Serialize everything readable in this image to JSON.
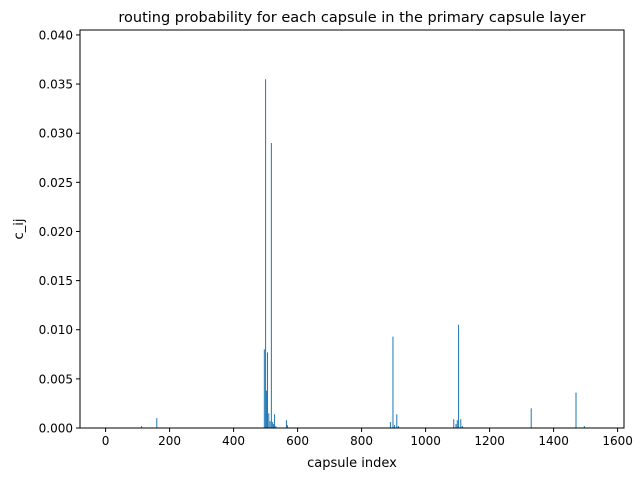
{
  "chart_data": {
    "type": "bar",
    "title": "routing probability for each capsule in the primary capsule layer",
    "xlabel": "capsule index",
    "ylabel": "c_ij",
    "xlim": [
      -80,
      1620
    ],
    "ylim": [
      0,
      0.0405
    ],
    "xticks": [
      0,
      200,
      400,
      600,
      800,
      1000,
      1200,
      1400,
      1600
    ],
    "xtick_labels": [
      "0",
      "200",
      "400",
      "600",
      "800",
      "1000",
      "1200",
      "1400",
      "1600"
    ],
    "yticks": [
      0.0,
      0.005,
      0.01,
      0.015,
      0.02,
      0.025,
      0.03,
      0.035,
      0.04
    ],
    "ytick_labels": [
      "0.000",
      "0.005",
      "0.010",
      "0.015",
      "0.020",
      "0.025",
      "0.030",
      "0.035",
      "0.040"
    ],
    "grid": false,
    "bar_color": "#1f77b4",
    "x": [
      112,
      160,
      496,
      500,
      503,
      506,
      510,
      514,
      518,
      522,
      525,
      528,
      532,
      565,
      568,
      890,
      898,
      903,
      910,
      915,
      1088,
      1095,
      1099,
      1103,
      1110,
      1115,
      1330,
      1470,
      1496
    ],
    "values": [
      0.0002,
      0.001,
      0.008,
      0.0355,
      0.0038,
      0.0077,
      0.0015,
      0.0007,
      0.029,
      0.0006,
      0.0004,
      0.0014,
      0.0002,
      0.0008,
      0.0003,
      0.0006,
      0.0093,
      0.0003,
      0.0014,
      0.0002,
      0.0009,
      0.0004,
      0.0008,
      0.0105,
      0.0009,
      0.0002,
      0.002,
      0.0036,
      0.0002
    ]
  }
}
